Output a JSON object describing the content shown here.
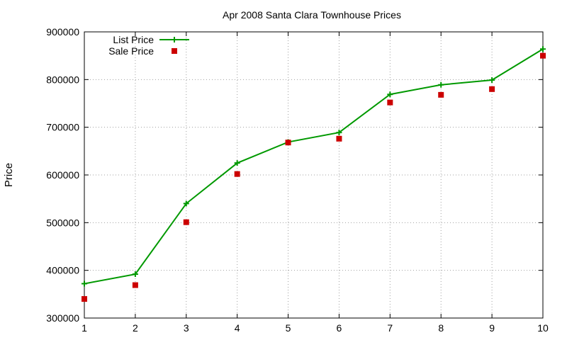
{
  "chart_data": {
    "type": "line",
    "title": "Apr 2008 Santa Clara Townhouse Prices",
    "xlabel": "",
    "ylabel": "Price",
    "x": [
      1,
      2,
      3,
      4,
      5,
      6,
      7,
      8,
      9,
      10
    ],
    "xlim": [
      1,
      10
    ],
    "ylim": [
      300000,
      900000
    ],
    "xticks": [
      "1",
      "2",
      "3",
      "4",
      "5",
      "6",
      "7",
      "8",
      "9",
      "10"
    ],
    "yticks": [
      "300000",
      "400000",
      "500000",
      "600000",
      "700000",
      "800000",
      "900000"
    ],
    "grid": true,
    "legend_position": "top-left",
    "series": [
      {
        "name": "List Price",
        "style": "line-with-plus-markers",
        "color": "#009900",
        "values": [
          372000,
          392000,
          540000,
          625000,
          669000,
          689000,
          769000,
          789000,
          799000,
          864000
        ]
      },
      {
        "name": "Sale Price",
        "style": "square-markers",
        "color": "#cc0000",
        "values": [
          340000,
          369000,
          501000,
          602000,
          668000,
          676000,
          752000,
          768000,
          780000,
          850000
        ]
      }
    ]
  }
}
